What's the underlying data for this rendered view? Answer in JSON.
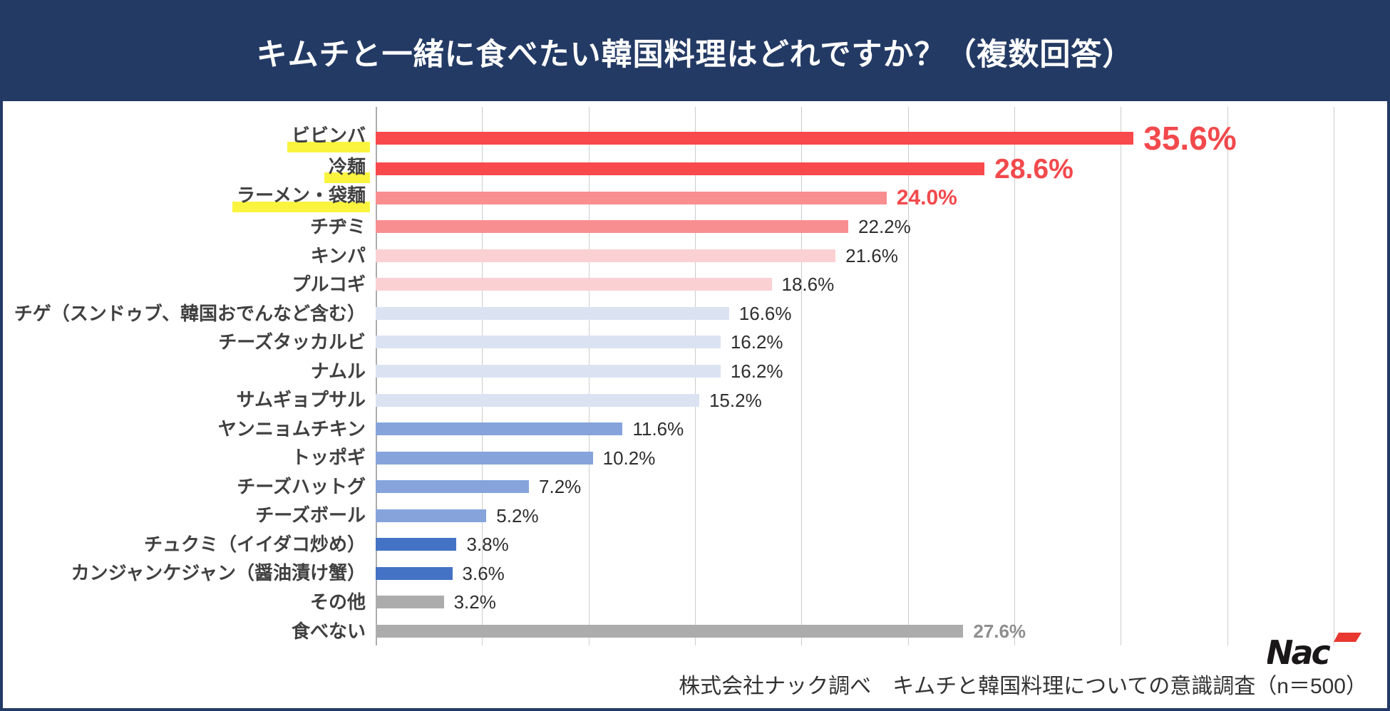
{
  "header": {
    "title": "キムチと一緒に食べたい韓国料理はどれですか？（複数回答）",
    "background_color": "#233A64"
  },
  "footer": {
    "source_note": "株式会社ナック調べ　キムチと韓国料理についての意識調査（n＝500）"
  },
  "logo": {
    "text": "Nac",
    "text_color": "#1A1718",
    "accent_color": "#E8382F"
  },
  "highlight_marker_color": "#FAF43F",
  "chart_data": {
    "type": "bar",
    "orientation": "horizontal",
    "title": "キムチと一緒に食べたい韓国料理はどれですか？（複数回答）",
    "xlabel": "",
    "ylabel": "",
    "axis_max_pct": 45,
    "gridline_step_pct": 5,
    "grid": true,
    "legend": false,
    "items": [
      {
        "label": "ビビンバ",
        "value": 35.6,
        "value_label": "35.6%",
        "color": "#F8494C",
        "highlight": true,
        "value_style": "xl"
      },
      {
        "label": "冷麺",
        "value": 28.6,
        "value_label": "28.6%",
        "color": "#F8494C",
        "highlight": true,
        "value_style": "lg"
      },
      {
        "label": "ラーメン・袋麺",
        "value": 24.0,
        "value_label": "24.0%",
        "color": "#F98E90",
        "highlight": true,
        "value_style": "md"
      },
      {
        "label": "チヂミ",
        "value": 22.2,
        "value_label": "22.2%",
        "color": "#F98E90",
        "highlight": false,
        "value_style": "plain"
      },
      {
        "label": "キンパ",
        "value": 21.6,
        "value_label": "21.6%",
        "color": "#FBD0D2",
        "highlight": false,
        "value_style": "plain"
      },
      {
        "label": "プルコギ",
        "value": 18.6,
        "value_label": "18.6%",
        "color": "#FBD0D2",
        "highlight": false,
        "value_style": "plain"
      },
      {
        "label": "チゲ（スンドゥブ、韓国おでんなど含む）",
        "value": 16.6,
        "value_label": "16.6%",
        "color": "#DBE3F2",
        "highlight": false,
        "value_style": "plain"
      },
      {
        "label": "チーズタッカルビ",
        "value": 16.2,
        "value_label": "16.2%",
        "color": "#DBE3F2",
        "highlight": false,
        "value_style": "plain"
      },
      {
        "label": "ナムル",
        "value": 16.2,
        "value_label": "16.2%",
        "color": "#DBE3F2",
        "highlight": false,
        "value_style": "plain"
      },
      {
        "label": "サムギョプサル",
        "value": 15.2,
        "value_label": "15.2%",
        "color": "#DBE3F2",
        "highlight": false,
        "value_style": "plain"
      },
      {
        "label": "ヤンニョムチキン",
        "value": 11.6,
        "value_label": "11.6%",
        "color": "#86A4DB",
        "highlight": false,
        "value_style": "plain"
      },
      {
        "label": "トッポギ",
        "value": 10.2,
        "value_label": "10.2%",
        "color": "#86A4DB",
        "highlight": false,
        "value_style": "plain"
      },
      {
        "label": "チーズハットグ",
        "value": 7.2,
        "value_label": "7.2%",
        "color": "#86A4DB",
        "highlight": false,
        "value_style": "plain"
      },
      {
        "label": "チーズボール",
        "value": 5.2,
        "value_label": "5.2%",
        "color": "#86A4DB",
        "highlight": false,
        "value_style": "plain"
      },
      {
        "label": "チュクミ（イイダコ炒め）",
        "value": 3.8,
        "value_label": "3.8%",
        "color": "#4472C4",
        "highlight": false,
        "value_style": "plain"
      },
      {
        "label": "カンジャンケジャン（醤油漬け蟹）",
        "value": 3.6,
        "value_label": "3.6%",
        "color": "#4472C4",
        "highlight": false,
        "value_style": "plain"
      },
      {
        "label": "その他",
        "value": 3.2,
        "value_label": "3.2%",
        "color": "#ACACAC",
        "highlight": false,
        "value_style": "plain"
      },
      {
        "label": "食べない",
        "value": 27.6,
        "value_label": "27.6%",
        "color": "#ACACAC",
        "highlight": false,
        "value_style": "gray"
      }
    ]
  }
}
